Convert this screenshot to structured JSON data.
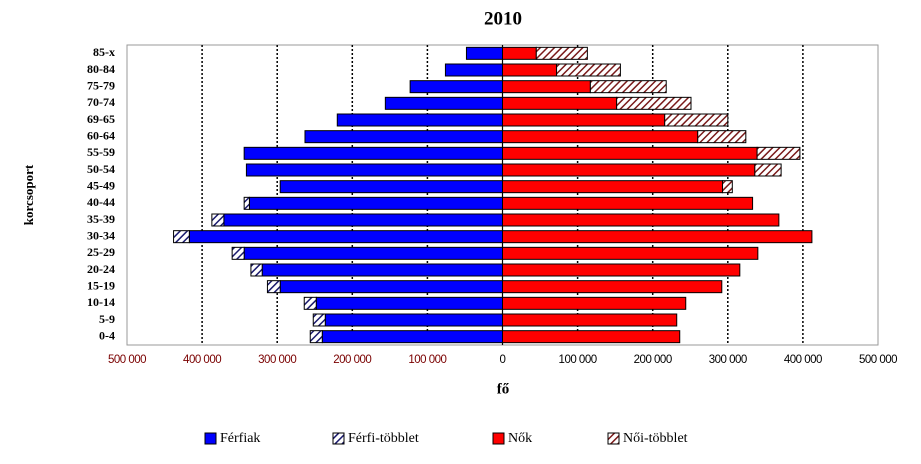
{
  "chart_data": {
    "type": "pyramid",
    "title": "2010",
    "x_label": "fő",
    "y_label": "korcsoport",
    "categories": [
      "85-x",
      "80-84",
      "75-79",
      "70-74",
      "69-65",
      "60-64",
      "55-59",
      "50-54",
      "45-49",
      "40-44",
      "35-39",
      "30-34",
      "25-29",
      "20-24",
      "15-19",
      "10-14",
      "5-9",
      "0-4"
    ],
    "series": [
      {
        "name": "Férfiak",
        "color": "#0000ff",
        "hatch": false,
        "values": [
          -48000,
          -76000,
          -123000,
          -156000,
          -220000,
          -263000,
          -344000,
          -341000,
          -296000,
          -337000,
          -371000,
          -417000,
          -344000,
          -320000,
          -296000,
          -248000,
          -236000,
          -240000
        ]
      },
      {
        "name": "Férfi-többlet",
        "color": "#1a1a6e",
        "hatch": true,
        "values": [
          null,
          null,
          null,
          null,
          null,
          null,
          null,
          null,
          null,
          -7000,
          -16000,
          -21000,
          -16000,
          -15000,
          -17000,
          -16000,
          -16000,
          -16000
        ]
      },
      {
        "name": "Nők",
        "color": "#ff0000",
        "hatch": false,
        "values": [
          45000,
          72000,
          117000,
          152000,
          216000,
          260000,
          339000,
          336000,
          293000,
          333000,
          368000,
          412000,
          340000,
          316000,
          292000,
          244000,
          232000,
          236000
        ]
      },
      {
        "name": "Női-többlet",
        "color": "#7a1a1a",
        "hatch": true,
        "values": [
          68000,
          85000,
          101000,
          99000,
          84000,
          64000,
          57000,
          35000,
          13000,
          null,
          null,
          null,
          null,
          null,
          null,
          null,
          null,
          null
        ]
      }
    ],
    "xlim": [
      -500000,
      500000
    ],
    "xticks": [
      {
        "value": -500000,
        "label": "500 000"
      },
      {
        "value": -400000,
        "label": "400 000"
      },
      {
        "value": -300000,
        "label": "300 000"
      },
      {
        "value": -200000,
        "label": "200 000"
      },
      {
        "value": -100000,
        "label": "100 000"
      },
      0,
      {
        "value": 100000,
        "label": "100 000"
      },
      {
        "value": 200000,
        "label": "200 000"
      },
      {
        "value": 300000,
        "label": "300 000"
      },
      {
        "value": 400000,
        "label": "400 000"
      },
      {
        "value": 500000,
        "label": "500 000"
      }
    ],
    "grid": true
  }
}
